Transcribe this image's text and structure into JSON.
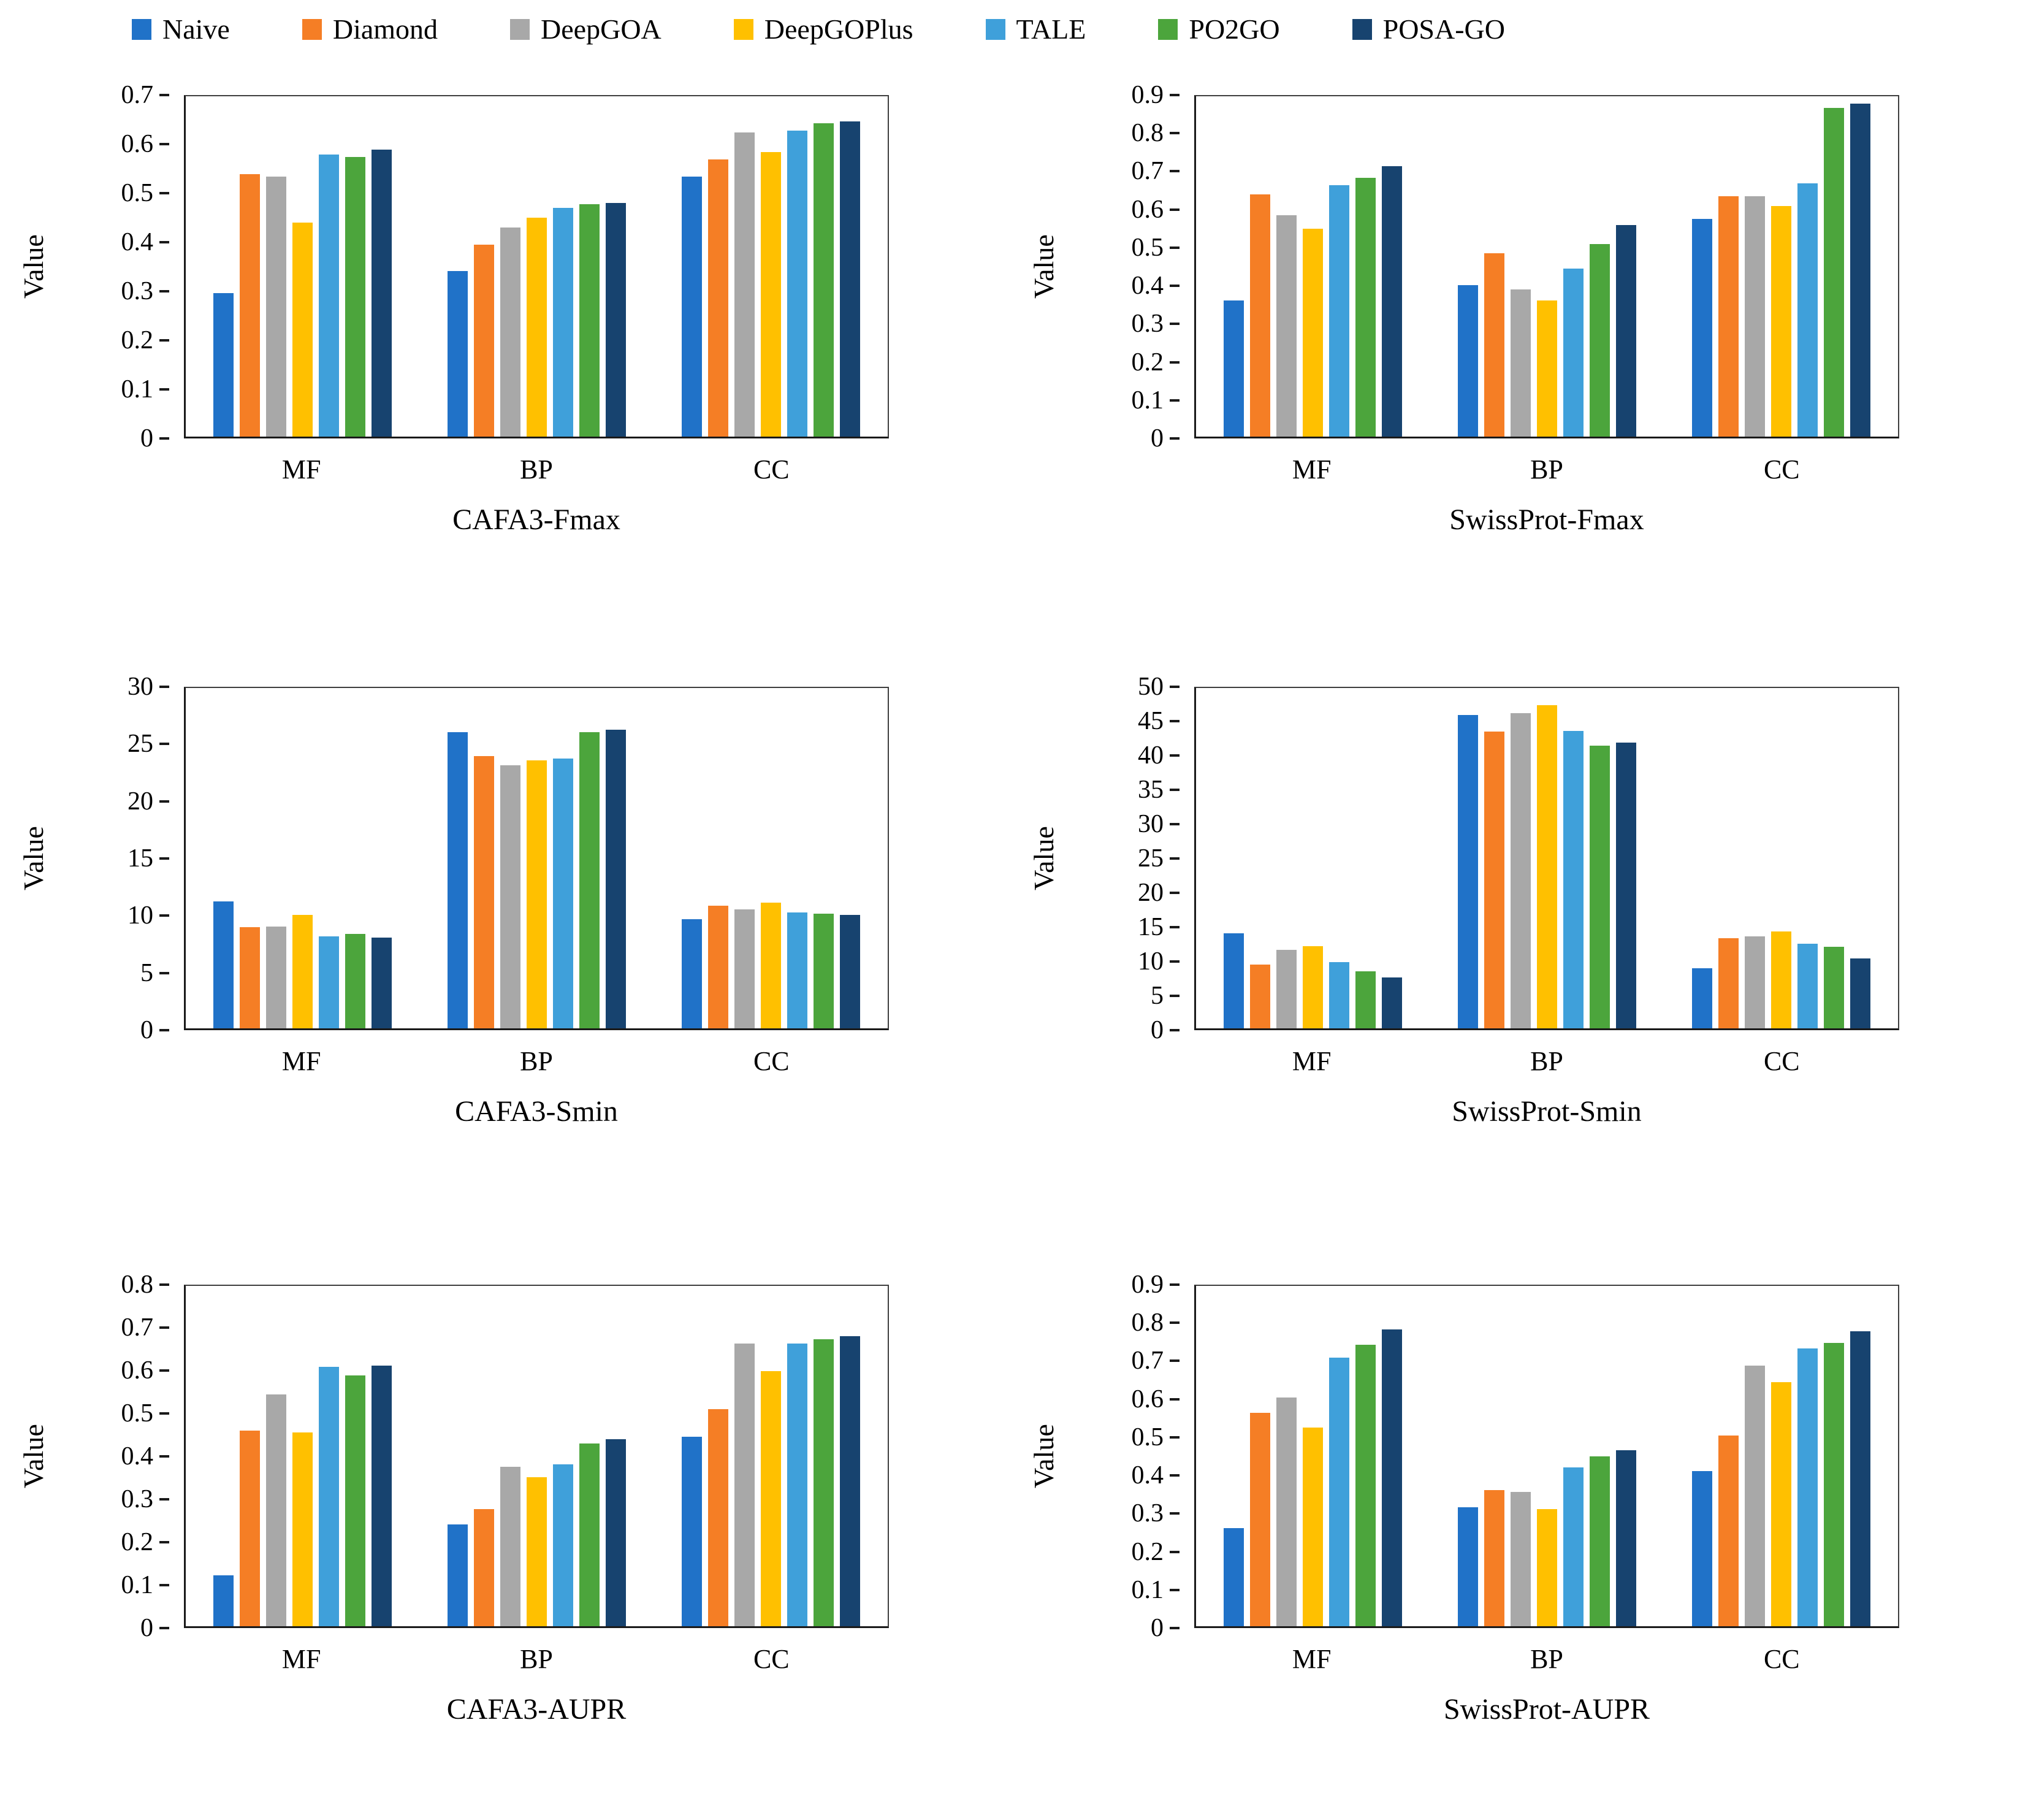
{
  "legend": {
    "position": "top",
    "items": [
      {
        "label": "Naive",
        "color": "#2072C8"
      },
      {
        "label": "Diamond",
        "color": "#F57E25"
      },
      {
        "label": "DeepGOA",
        "color": "#A8A8A8"
      },
      {
        "label": "DeepGOPlus",
        "color": "#FFC000"
      },
      {
        "label": "TALE",
        "color": "#3FA0DA"
      },
      {
        "label": "PO2GO",
        "color": "#4CA53C"
      },
      {
        "label": "POSA-GO",
        "color": "#17436F"
      }
    ]
  },
  "categories": [
    "MF",
    "BP",
    "CC"
  ],
  "chart_data": [
    {
      "type": "bar",
      "title": "CAFA3-Fmax",
      "ylabel": "Value",
      "xlabel": "",
      "categories": [
        "MF",
        "BP",
        "CC"
      ],
      "ylim": [
        0,
        0.7
      ],
      "yticks": [
        "0",
        "0.1",
        "0.2",
        "0.3",
        "0.4",
        "0.5",
        "0.6",
        "0.7"
      ],
      "grid": false,
      "series": [
        {
          "name": "Naive",
          "values": [
            0.295,
            0.34,
            0.535
          ]
        },
        {
          "name": "Diamond",
          "values": [
            0.54,
            0.395,
            0.57
          ]
        },
        {
          "name": "DeepGOA",
          "values": [
            0.535,
            0.43,
            0.625
          ]
        },
        {
          "name": "DeepGOPlus",
          "values": [
            0.44,
            0.45,
            0.585
          ]
        },
        {
          "name": "TALE",
          "values": [
            0.58,
            0.47,
            0.63
          ]
        },
        {
          "name": "PO2GO",
          "values": [
            0.575,
            0.478,
            0.645
          ]
        },
        {
          "name": "POSA-GO",
          "values": [
            0.59,
            0.48,
            0.648
          ]
        }
      ]
    },
    {
      "type": "bar",
      "title": "SwissProt-Fmax",
      "ylabel": "Value",
      "xlabel": "",
      "categories": [
        "MF",
        "BP",
        "CC"
      ],
      "ylim": [
        0,
        0.9
      ],
      "yticks": [
        "0",
        "0.1",
        "0.2",
        "0.3",
        "0.4",
        "0.5",
        "0.6",
        "0.7",
        "0.8",
        "0.9"
      ],
      "grid": false,
      "series": [
        {
          "name": "Naive",
          "values": [
            0.36,
            0.4,
            0.575
          ]
        },
        {
          "name": "Diamond",
          "values": [
            0.64,
            0.485,
            0.635
          ]
        },
        {
          "name": "DeepGOA",
          "values": [
            0.585,
            0.39,
            0.635
          ]
        },
        {
          "name": "DeepGOPlus",
          "values": [
            0.55,
            0.36,
            0.61
          ]
        },
        {
          "name": "TALE",
          "values": [
            0.665,
            0.445,
            0.67
          ]
        },
        {
          "name": "PO2GO",
          "values": [
            0.685,
            0.51,
            0.87
          ]
        },
        {
          "name": "POSA-GO",
          "values": [
            0.715,
            0.56,
            0.88
          ]
        }
      ]
    },
    {
      "type": "bar",
      "title": "CAFA3-Smin",
      "ylabel": "Value",
      "xlabel": "",
      "categories": [
        "MF",
        "BP",
        "CC"
      ],
      "ylim": [
        0,
        30
      ],
      "yticks": [
        "0",
        "5",
        "10",
        "15",
        "20",
        "25",
        "30"
      ],
      "grid": false,
      "series": [
        {
          "name": "Naive",
          "values": [
            11.2,
            26.1,
            9.6
          ]
        },
        {
          "name": "Diamond",
          "values": [
            8.9,
            24.0,
            10.8
          ]
        },
        {
          "name": "DeepGOA",
          "values": [
            9.0,
            23.2,
            10.5
          ]
        },
        {
          "name": "DeepGOPlus",
          "values": [
            10.0,
            23.6,
            11.1
          ]
        },
        {
          "name": "TALE",
          "values": [
            8.1,
            23.8,
            10.2
          ]
        },
        {
          "name": "PO2GO",
          "values": [
            8.3,
            26.1,
            10.1
          ]
        },
        {
          "name": "POSA-GO",
          "values": [
            8.0,
            26.3,
            10.0
          ]
        }
      ]
    },
    {
      "type": "bar",
      "title": "SwissProt-Smin",
      "ylabel": "Value",
      "xlabel": "",
      "categories": [
        "MF",
        "BP",
        "CC"
      ],
      "ylim": [
        0,
        50
      ],
      "yticks": [
        "0",
        "5",
        "10",
        "15",
        "20",
        "25",
        "30",
        "35",
        "40",
        "45",
        "50"
      ],
      "grid": false,
      "series": [
        {
          "name": "Naive",
          "values": [
            14.0,
            46.0,
            8.8
          ]
        },
        {
          "name": "Diamond",
          "values": [
            9.4,
            43.6,
            13.2
          ]
        },
        {
          "name": "DeepGOA",
          "values": [
            11.5,
            46.3,
            13.5
          ]
        },
        {
          "name": "DeepGOPlus",
          "values": [
            12.1,
            47.5,
            14.2
          ]
        },
        {
          "name": "TALE",
          "values": [
            9.7,
            43.7,
            12.4
          ]
        },
        {
          "name": "PO2GO",
          "values": [
            8.4,
            41.5,
            12.0
          ]
        },
        {
          "name": "POSA-GO",
          "values": [
            7.5,
            42.0,
            10.3
          ]
        }
      ]
    },
    {
      "type": "bar",
      "title": "CAFA3-AUPR",
      "ylabel": "Value",
      "xlabel": "",
      "categories": [
        "MF",
        "BP",
        "CC"
      ],
      "ylim": [
        0,
        0.8
      ],
      "yticks": [
        "0",
        "0.1",
        "0.2",
        "0.3",
        "0.4",
        "0.5",
        "0.6",
        "0.7",
        "0.8"
      ],
      "grid": false,
      "series": [
        {
          "name": "Naive",
          "values": [
            0.12,
            0.24,
            0.445
          ]
        },
        {
          "name": "Diamond",
          "values": [
            0.46,
            0.275,
            0.51
          ]
        },
        {
          "name": "DeepGOA",
          "values": [
            0.545,
            0.375,
            0.665
          ]
        },
        {
          "name": "DeepGOPlus",
          "values": [
            0.455,
            0.35,
            0.6
          ]
        },
        {
          "name": "TALE",
          "values": [
            0.61,
            0.38,
            0.665
          ]
        },
        {
          "name": "PO2GO",
          "values": [
            0.59,
            0.43,
            0.675
          ]
        },
        {
          "name": "POSA-GO",
          "values": [
            0.612,
            0.44,
            0.682
          ]
        }
      ]
    },
    {
      "type": "bar",
      "title": "SwissProt-AUPR",
      "ylabel": "Value",
      "xlabel": "",
      "categories": [
        "MF",
        "BP",
        "CC"
      ],
      "ylim": [
        0,
        0.9
      ],
      "yticks": [
        "0",
        "0.1",
        "0.2",
        "0.3",
        "0.4",
        "0.5",
        "0.6",
        "0.7",
        "0.8",
        "0.9"
      ],
      "grid": false,
      "series": [
        {
          "name": "Naive",
          "values": [
            0.26,
            0.315,
            0.41
          ]
        },
        {
          "name": "Diamond",
          "values": [
            0.565,
            0.36,
            0.505
          ]
        },
        {
          "name": "DeepGOA",
          "values": [
            0.605,
            0.355,
            0.69
          ]
        },
        {
          "name": "DeepGOPlus",
          "values": [
            0.525,
            0.31,
            0.645
          ]
        },
        {
          "name": "TALE",
          "values": [
            0.71,
            0.42,
            0.735
          ]
        },
        {
          "name": "PO2GO",
          "values": [
            0.745,
            0.45,
            0.75
          ]
        },
        {
          "name": "POSA-GO",
          "values": [
            0.785,
            0.465,
            0.78
          ]
        }
      ]
    }
  ]
}
